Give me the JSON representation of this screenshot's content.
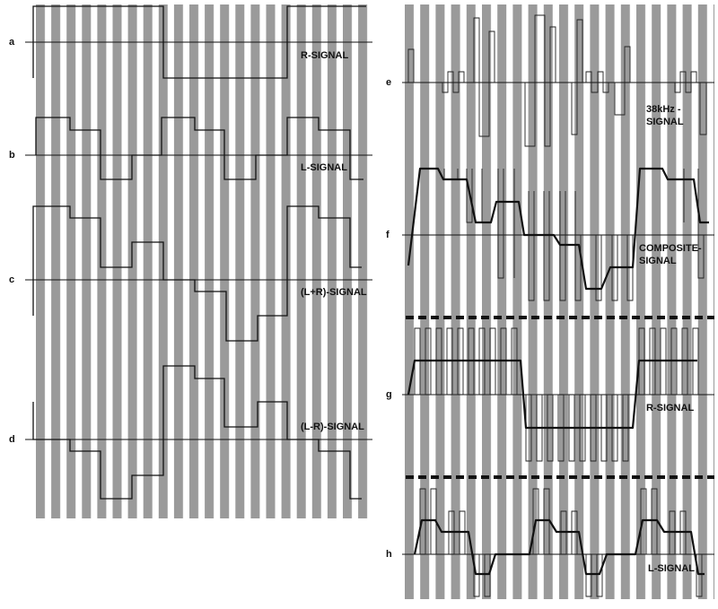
{
  "panels": [
    {
      "label": "a",
      "caption": [
        "R-SIGNAL"
      ]
    },
    {
      "label": "b",
      "caption": [
        "L-SIGNAL"
      ]
    },
    {
      "label": "c",
      "caption": [
        "(L+R)-SIGNAL"
      ]
    },
    {
      "label": "d",
      "caption": [
        "(L-R)-SIGNAL"
      ]
    },
    {
      "label": "e",
      "caption": [
        "38kHz -",
        "SIGNAL"
      ]
    },
    {
      "label": "f",
      "caption": [
        "COMPOSITE-",
        "SIGNAL"
      ]
    },
    {
      "label": "g",
      "caption": [
        "R-SIGNAL"
      ]
    },
    {
      "label": "h",
      "caption": [
        "L-SIGNAL"
      ]
    }
  ]
}
